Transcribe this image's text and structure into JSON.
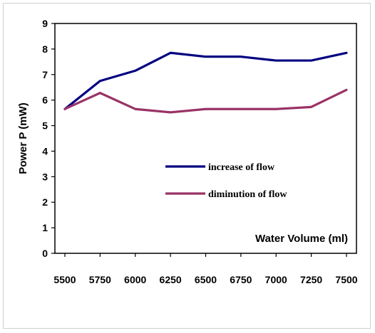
{
  "chart_data": {
    "type": "line",
    "title": "",
    "xlabel": "Water Volume (ml)",
    "ylabel": "Power P (mW)",
    "categories": [
      "5500",
      "5750",
      "6000",
      "6250",
      "6500",
      "6750",
      "7000",
      "7250",
      "7500"
    ],
    "yticks": [
      "0",
      "1",
      "2",
      "3",
      "4",
      "5",
      "6",
      "7",
      "8",
      "9"
    ],
    "ylim": [
      0,
      9
    ],
    "grid": false,
    "legend_position": "center",
    "series": [
      {
        "name": "increase of flow",
        "color": "#000080",
        "values": [
          5.65,
          6.75,
          7.15,
          7.85,
          7.7,
          7.7,
          7.55,
          7.55,
          7.85
        ]
      },
      {
        "name": "diminution of flow",
        "color": "#993366",
        "values": [
          5.65,
          6.28,
          5.65,
          5.52,
          5.65,
          5.65,
          5.65,
          5.73,
          6.4
        ]
      }
    ]
  }
}
